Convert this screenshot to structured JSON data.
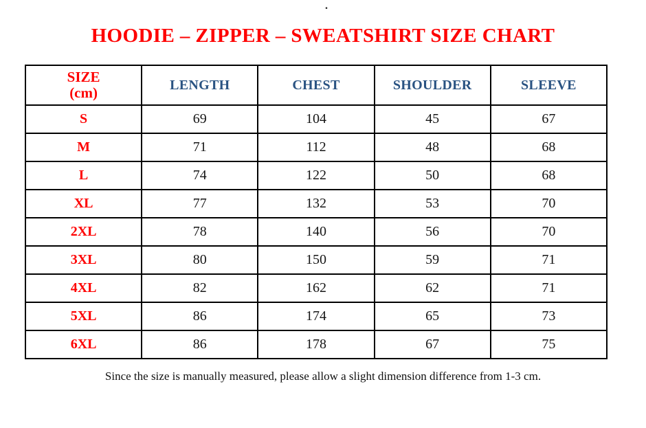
{
  "page": {
    "top_mark": "."
  },
  "title": {
    "text": "HOODIE – ZIPPER – SWEATSHIRT SIZE CHART",
    "color": "#fe0000"
  },
  "table": {
    "header": {
      "size_line1": "SIZE",
      "size_line2": "(cm)",
      "columns": [
        "LENGTH",
        "CHEST",
        "SHOULDER",
        "SLEEVE"
      ]
    },
    "rows": [
      {
        "size": "S",
        "length": 69,
        "chest": 104,
        "shoulder": 45,
        "sleeve": 67
      },
      {
        "size": "M",
        "length": 71,
        "chest": 112,
        "shoulder": 48,
        "sleeve": 68
      },
      {
        "size": "L",
        "length": 74,
        "chest": 122,
        "shoulder": 50,
        "sleeve": 68
      },
      {
        "size": "XL",
        "length": 77,
        "chest": 132,
        "shoulder": 53,
        "sleeve": 70
      },
      {
        "size": "2XL",
        "length": 78,
        "chest": 140,
        "shoulder": 56,
        "sleeve": 70
      },
      {
        "size": "3XL",
        "length": 80,
        "chest": 150,
        "shoulder": 59,
        "sleeve": 71
      },
      {
        "size": "4XL",
        "length": 82,
        "chest": 162,
        "shoulder": 62,
        "sleeve": 71
      },
      {
        "size": "5XL",
        "length": 86,
        "chest": 174,
        "shoulder": 65,
        "sleeve": 73
      },
      {
        "size": "6XL",
        "length": 86,
        "chest": 178,
        "shoulder": 67,
        "sleeve": 75
      }
    ],
    "colors": {
      "size_red": "#fe0000",
      "header_blue": "#2a5382",
      "value_black": "#151515",
      "border_black": "#000000"
    }
  },
  "footer": {
    "note": "Since the size is manually measured, please allow a slight dimension difference from 1-3 cm."
  }
}
